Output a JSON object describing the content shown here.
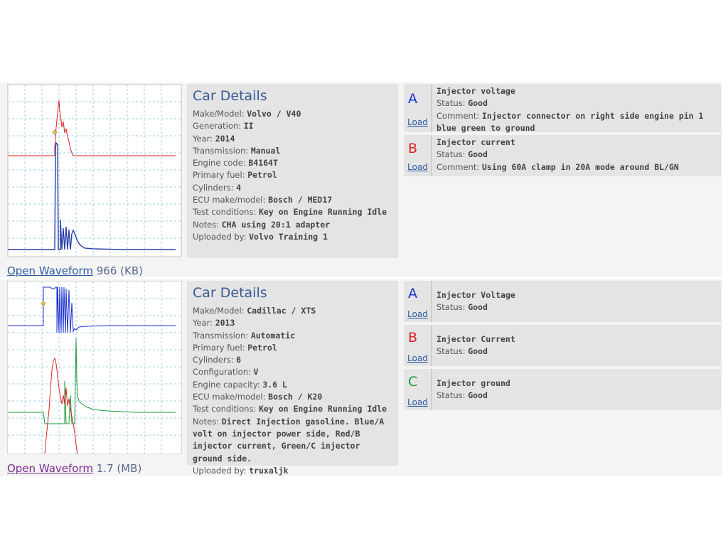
{
  "colors": {
    "channel_a": "#1a2fd0",
    "channel_b": "#e02020",
    "channel_c": "#1a9a3a",
    "link": "#2c5aa0",
    "link_visited": "#7a2b8c",
    "heading": "#3a5a96"
  },
  "entries": [
    {
      "thumbnail": {
        "traces": [
          "red",
          "blue"
        ],
        "trigger_marker": "yellow-diamond"
      },
      "open_label": "Open Waveform",
      "size": "966 (KB)",
      "details_title": "Car Details",
      "details": [
        {
          "label": "Make/Model:",
          "value": "Volvo / V40"
        },
        {
          "label": "Generation:",
          "value": "II"
        },
        {
          "label": "Year:",
          "value": "2014"
        },
        {
          "label": "Transmission:",
          "value": "Manual"
        },
        {
          "label": "Engine code:",
          "value": "B4164T"
        },
        {
          "label": "Primary fuel:",
          "value": "Petrol"
        },
        {
          "label": "Cylinders:",
          "value": "4"
        },
        {
          "label": "ECU make/model:",
          "value": "Bosch / MED17"
        },
        {
          "label": "Test conditions:",
          "value": "Key on Engine Running Idle"
        },
        {
          "label": "Notes:",
          "value": "CHA using 20:1 adapter"
        },
        {
          "label": "Uploaded by:",
          "value": "Volvo Training 1"
        }
      ],
      "channels": [
        {
          "letter": "A",
          "color": "#1a2fd0",
          "title": "Injector voltage",
          "status_label": "Status:",
          "status": "Good",
          "comment_label": "Comment:",
          "comment": "Injector connector on right side engine pin 1 blue green to ground",
          "load_label": "Load"
        },
        {
          "letter": "B",
          "color": "#e02020",
          "title": "Injector current",
          "status_label": "Status:",
          "status": "Good",
          "comment_label": "Comment:",
          "comment": "Using 60A clamp in 20A mode around BL/GN",
          "load_label": "Load"
        }
      ]
    },
    {
      "thumbnail": {
        "traces": [
          "blue",
          "red",
          "green"
        ],
        "trigger_marker": "yellow-diamond"
      },
      "open_label": "Open Waveform",
      "size": "1.7 (MB)",
      "details_title": "Car Details",
      "details": [
        {
          "label": "Make/Model:",
          "value": "Cadillac / XTS"
        },
        {
          "label": "Year:",
          "value": "2013"
        },
        {
          "label": "Transmission:",
          "value": "Automatic"
        },
        {
          "label": "Primary fuel:",
          "value": "Petrol"
        },
        {
          "label": "Cylinders:",
          "value": "6"
        },
        {
          "label": "Configuration:",
          "value": "V"
        },
        {
          "label": "Engine capacity:",
          "value": "3.6 L"
        },
        {
          "label": "ECU make/model:",
          "value": "Bosch / K20"
        },
        {
          "label": "Test conditions:",
          "value": "Key on Engine Running Idle"
        },
        {
          "label": "Notes:",
          "value": "Direct Injection gasoline. Blue/A volt on injector power side, Red/B injector current, Green/C injector ground side."
        },
        {
          "label": "Uploaded by:",
          "value": "truxaljk"
        }
      ],
      "channels": [
        {
          "letter": "A",
          "color": "#1a2fd0",
          "title": "Injector Voltage",
          "status_label": "Status:",
          "status": "Good",
          "load_label": "Load"
        },
        {
          "letter": "B",
          "color": "#e02020",
          "title": "Injector Current",
          "status_label": "Status:",
          "status": "Good",
          "load_label": "Load"
        },
        {
          "letter": "C",
          "color": "#1a9a3a",
          "title": "Injector ground",
          "status_label": "Status:",
          "status": "Good",
          "load_label": "Load"
        }
      ]
    }
  ]
}
